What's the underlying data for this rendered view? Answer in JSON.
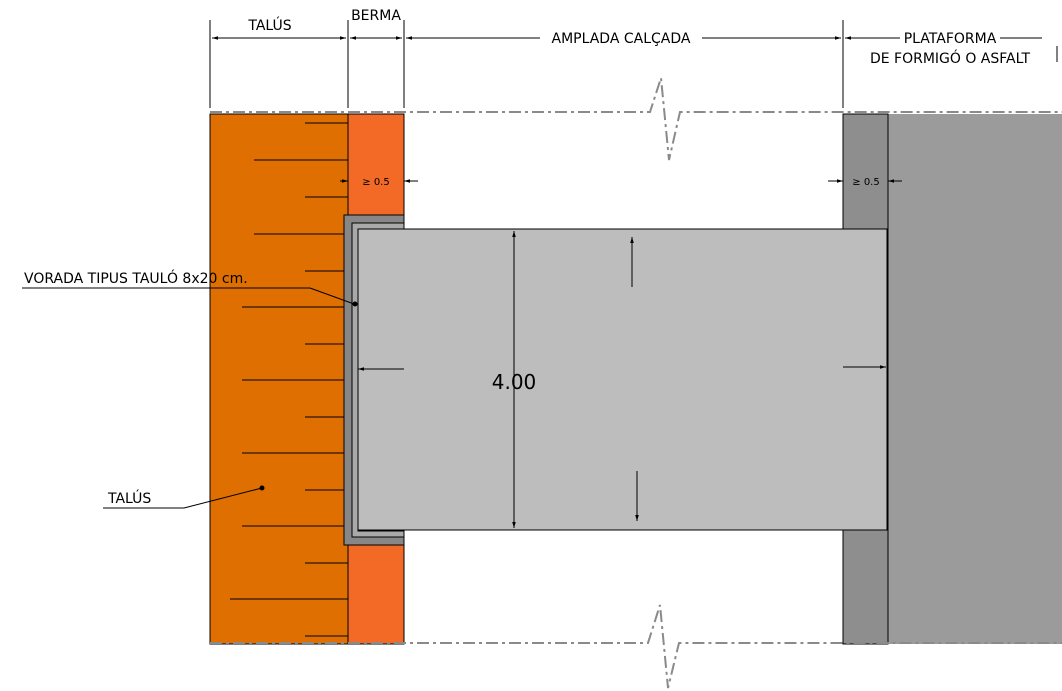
{
  "labels": {
    "talus_top": "TALÚS",
    "berma": "BERMA",
    "amplada_calcada": "AMPLADA CALÇADA",
    "plataforma_line1": "PLATAFORMA",
    "plataforma_line2": "DE FORMIGÓ O ASFALT",
    "vorada": "VORADA TIPUS TAULÓ 8x20 cm.",
    "talus_callout": "TALÚS",
    "min_left": "≥ 0.5",
    "min_right": "≥ 0.5",
    "width_dim": "4.00"
  },
  "colors": {
    "talus": "#df6f00",
    "berma": "#f26a26",
    "platform": "#9b9b9b",
    "platform_strip": "#8e8e8e",
    "slab": "#bdbdbd",
    "curb_outer": "#878787",
    "curb_inner": "#a9a9a9"
  }
}
